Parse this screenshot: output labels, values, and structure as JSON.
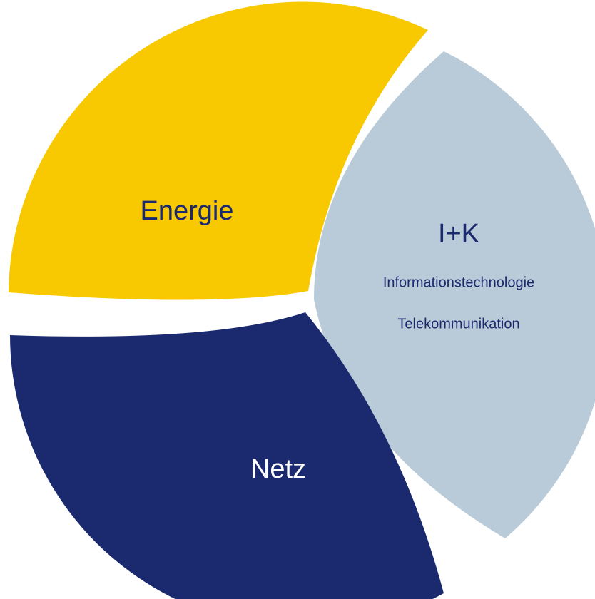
{
  "segments": [
    {
      "label": "Energie"
    },
    {
      "label": "I+K",
      "lines": [
        "Informationstechnologie",
        "Telekommunikation"
      ]
    },
    {
      "label": "Netz"
    }
  ]
}
